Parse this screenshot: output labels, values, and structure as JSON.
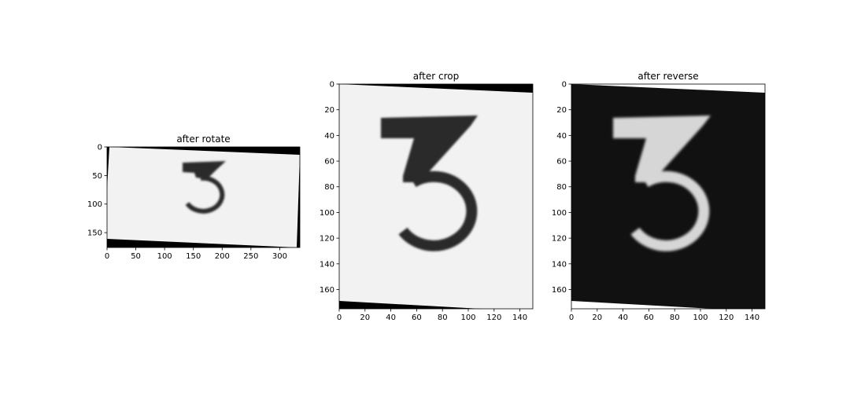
{
  "chart_data": [
    {
      "type": "image",
      "title": "after rotate",
      "xlim": [
        0,
        335
      ],
      "ylim": [
        176,
        0
      ],
      "xticks": [
        0,
        50,
        100,
        150,
        200,
        250,
        300
      ],
      "yticks": [
        0,
        50,
        100,
        150
      ],
      "grid": false,
      "image_content": "3",
      "image_style": "dark-digit-on-light"
    },
    {
      "type": "image",
      "title": "after crop",
      "xlim": [
        0,
        150
      ],
      "ylim": [
        175,
        0
      ],
      "xticks": [
        0,
        20,
        40,
        60,
        80,
        100,
        120,
        140
      ],
      "yticks": [
        0,
        20,
        40,
        60,
        80,
        100,
        120,
        140,
        160
      ],
      "grid": false,
      "image_content": "3",
      "image_style": "dark-digit-on-light"
    },
    {
      "type": "image",
      "title": "after reverse",
      "xlim": [
        0,
        150
      ],
      "ylim": [
        175,
        0
      ],
      "xticks": [
        0,
        20,
        40,
        60,
        80,
        100,
        120,
        140
      ],
      "yticks": [
        0,
        20,
        40,
        60,
        80,
        100,
        120,
        140,
        160
      ],
      "grid": false,
      "image_content": "3",
      "image_style": "light-digit-on-dark"
    }
  ],
  "colors": {
    "paper": "#f2f2f2",
    "ink": "#2b2b2b",
    "dark_bg": "#111111",
    "light_ink": "#d6d6d6",
    "black": "#000000",
    "white": "#ffffff"
  }
}
